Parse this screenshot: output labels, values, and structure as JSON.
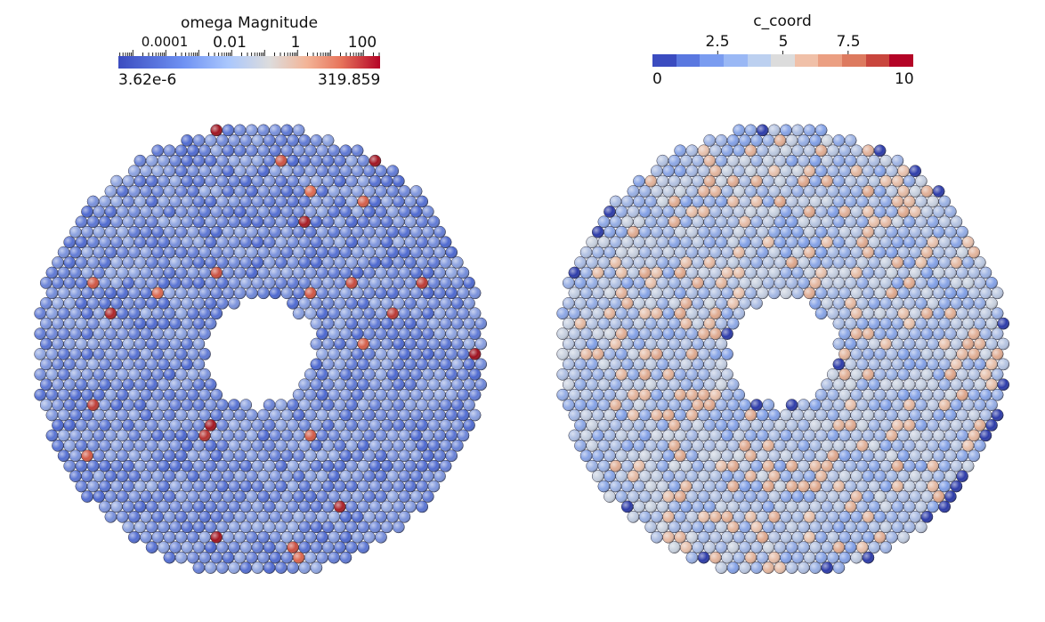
{
  "left_panel": {
    "legend": {
      "title": "omega Magnitude",
      "tick_labels": [
        "0.0001",
        "0.01",
        "1",
        "100"
      ],
      "min_label": "3.62e-6",
      "max_label": "319.859",
      "scale": "log",
      "colormap": "cool-to-warm"
    },
    "image_name": "particle-disk-omega"
  },
  "right_panel": {
    "legend": {
      "title": "c_coord",
      "tick_labels": [
        "2.5",
        "5",
        "7.5"
      ],
      "min_label": "0",
      "max_label": "10",
      "scale": "linear",
      "colormap": "cool-to-warm-discrete",
      "discrete_colors": [
        "#3b4cc0",
        "#5a78e0",
        "#7a9cf0",
        "#9ab8f5",
        "#bcd0f0",
        "#dcdcdc",
        "#f0c0a8",
        "#eb9f82",
        "#dd7a5f",
        "#c9463d",
        "#b40426"
      ]
    },
    "image_name": "particle-disk-coordination"
  },
  "colors": {
    "low": "#3b4cc0",
    "mid": "#dddddd",
    "high": "#b40426",
    "background": "#ffffff"
  }
}
